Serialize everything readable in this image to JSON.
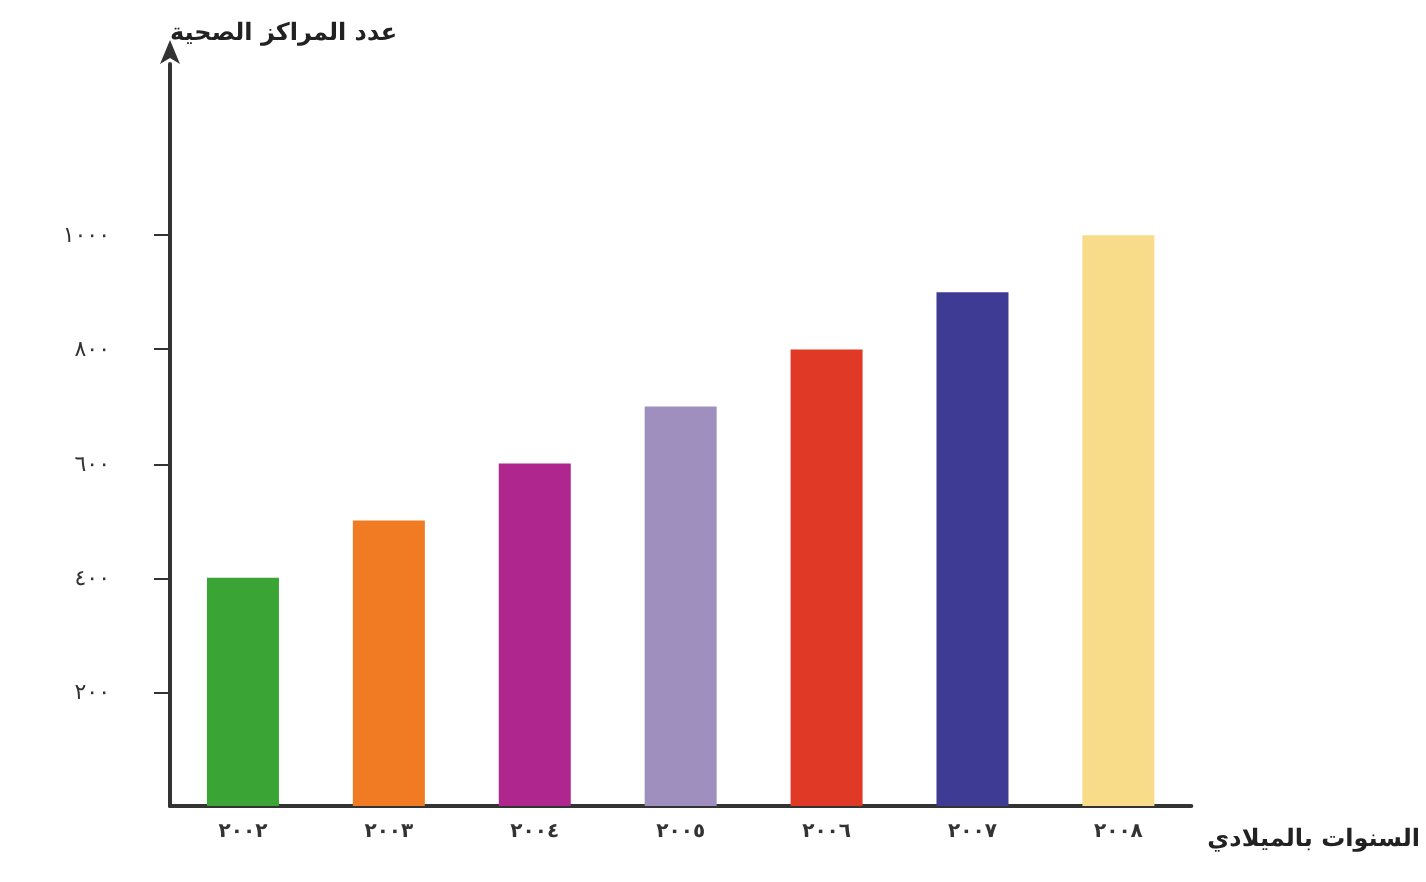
{
  "chart_data": {
    "type": "bar",
    "xlabel": "السنوات بالميلادي",
    "ylabel": "عدد المراكز الصحية",
    "categories": [
      "٢٠٠٢",
      "٢٠٠٣",
      "٢٠٠٤",
      "٢٠٠٥",
      "٢٠٠٦",
      "٢٠٠٧",
      "٢٠٠٨"
    ],
    "values": [
      400,
      500,
      600,
      700,
      800,
      900,
      1000
    ],
    "colors": [
      "#3aa535",
      "#f07b22",
      "#b0268f",
      "#9e8fbe",
      "#e03a26",
      "#3d3b93",
      "#f8dc8a"
    ],
    "ylim": [
      0,
      1300
    ],
    "yticks": [
      {
        "value": 200,
        "label": "٢٠٠"
      },
      {
        "value": 400,
        "label": "٤٠٠"
      },
      {
        "value": 600,
        "label": "٦٠٠"
      },
      {
        "value": 800,
        "label": "٨٠٠"
      },
      {
        "value": 1000,
        "label": "١٠٠٠"
      }
    ],
    "grid": false
  }
}
